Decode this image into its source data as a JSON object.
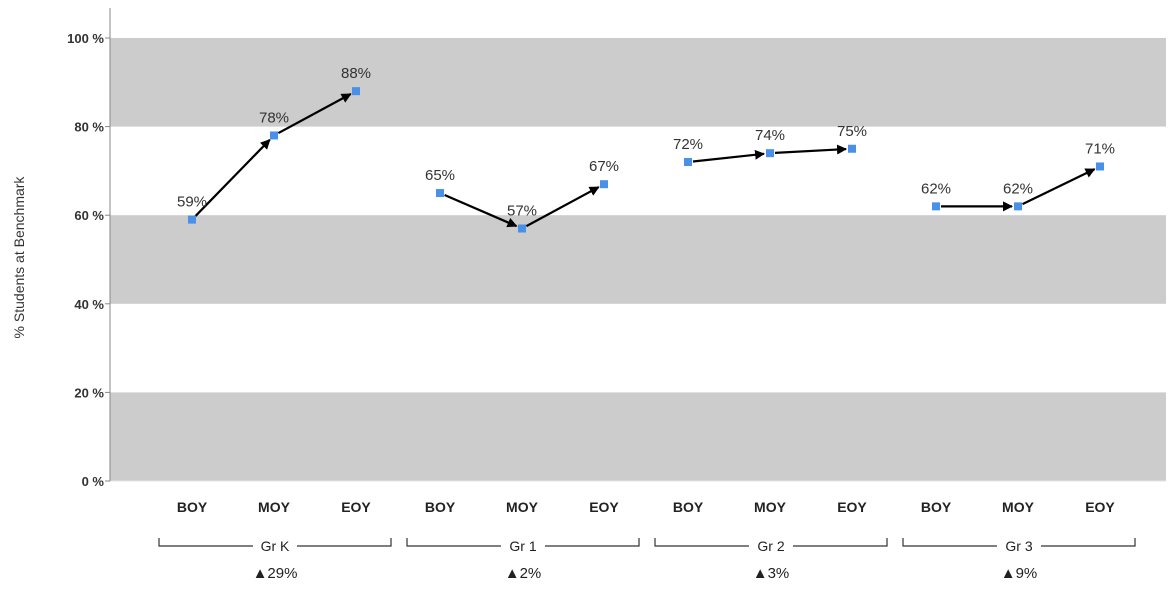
{
  "chart_data": {
    "type": "line",
    "ylabel": "% Students at Benchmark",
    "ylim": [
      0,
      100
    ],
    "yticks": [
      {
        "value": 0,
        "label": "0 %"
      },
      {
        "value": 20,
        "label": "20 %"
      },
      {
        "value": 40,
        "label": "40 %"
      },
      {
        "value": 60,
        "label": "60 %"
      },
      {
        "value": 80,
        "label": "80 %"
      },
      {
        "value": 100,
        "label": "100 %"
      }
    ],
    "bands_alternating": true,
    "band_color": "#cccccc",
    "point_color": "#4a90e8",
    "arrow_color": "#000000",
    "groups": [
      {
        "name": "Gr K",
        "change": "▲29%",
        "categories": [
          "BOY",
          "MOY",
          "EOY"
        ],
        "values": [
          59,
          78,
          88
        ],
        "labels": [
          "59%",
          "78%",
          "88%"
        ]
      },
      {
        "name": "Gr 1",
        "change": "▲2%",
        "categories": [
          "BOY",
          "MOY",
          "EOY"
        ],
        "values": [
          65,
          57,
          67
        ],
        "labels": [
          "65%",
          "57%",
          "67%"
        ]
      },
      {
        "name": "Gr 2",
        "change": "▲3%",
        "categories": [
          "BOY",
          "MOY",
          "EOY"
        ],
        "values": [
          72,
          74,
          75
        ],
        "labels": [
          "72%",
          "74%",
          "75%"
        ]
      },
      {
        "name": "Gr 3",
        "change": "▲9%",
        "categories": [
          "BOY",
          "MOY",
          "EOY"
        ],
        "values": [
          62,
          62,
          71
        ],
        "labels": [
          "62%",
          "62%",
          "71%"
        ]
      }
    ]
  }
}
